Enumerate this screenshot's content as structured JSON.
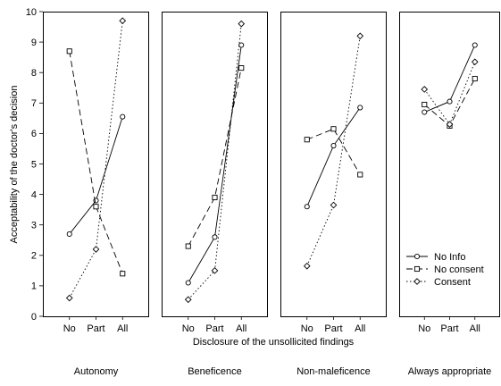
{
  "chart_data": {
    "type": "line",
    "ylabel": "Acceptability of the doctor's decision",
    "xlabel": "Disclosure of the unsollicited findings",
    "ylim": [
      0,
      10
    ],
    "yticks": [
      0,
      1,
      2,
      3,
      4,
      5,
      6,
      7,
      8,
      9,
      10
    ],
    "categories": [
      "No",
      "Part",
      "All"
    ],
    "legend": {
      "position": "bottom-right of last panel",
      "entries": [
        "No Info",
        "No consent",
        "Consent"
      ]
    },
    "panels": [
      {
        "title": "Autonomy",
        "series": [
          {
            "name": "No Info",
            "style": "solid",
            "marker": "circle",
            "values": [
              2.7,
              3.8,
              6.55
            ]
          },
          {
            "name": "No consent",
            "style": "dashed",
            "marker": "square",
            "values": [
              8.7,
              3.6,
              1.4
            ]
          },
          {
            "name": "Consent",
            "style": "dotted",
            "marker": "diamond",
            "values": [
              0.6,
              2.2,
              9.7
            ]
          }
        ]
      },
      {
        "title": "Beneficence",
        "series": [
          {
            "name": "No Info",
            "style": "solid",
            "marker": "circle",
            "values": [
              1.1,
              2.6,
              8.9
            ]
          },
          {
            "name": "No consent",
            "style": "dashed",
            "marker": "square",
            "values": [
              2.3,
              3.9,
              8.15
            ]
          },
          {
            "name": "Consent",
            "style": "dotted",
            "marker": "diamond",
            "values": [
              0.55,
              1.5,
              9.6
            ]
          }
        ]
      },
      {
        "title": "Non-maleficence",
        "series": [
          {
            "name": "No Info",
            "style": "solid",
            "marker": "circle",
            "values": [
              3.6,
              5.6,
              6.85
            ]
          },
          {
            "name": "No consent",
            "style": "dashed",
            "marker": "square",
            "values": [
              5.8,
              6.15,
              4.65
            ]
          },
          {
            "name": "Consent",
            "style": "dotted",
            "marker": "diamond",
            "values": [
              1.65,
              3.65,
              9.2
            ]
          }
        ]
      },
      {
        "title": "Always appropriate",
        "series": [
          {
            "name": "No Info",
            "style": "solid",
            "marker": "circle",
            "values": [
              6.7,
              7.05,
              8.9
            ]
          },
          {
            "name": "No consent",
            "style": "dashed",
            "marker": "square",
            "values": [
              6.95,
              6.25,
              7.8
            ]
          },
          {
            "name": "Consent",
            "style": "dotted",
            "marker": "diamond",
            "values": [
              7.45,
              6.3,
              8.35
            ]
          }
        ]
      }
    ]
  }
}
